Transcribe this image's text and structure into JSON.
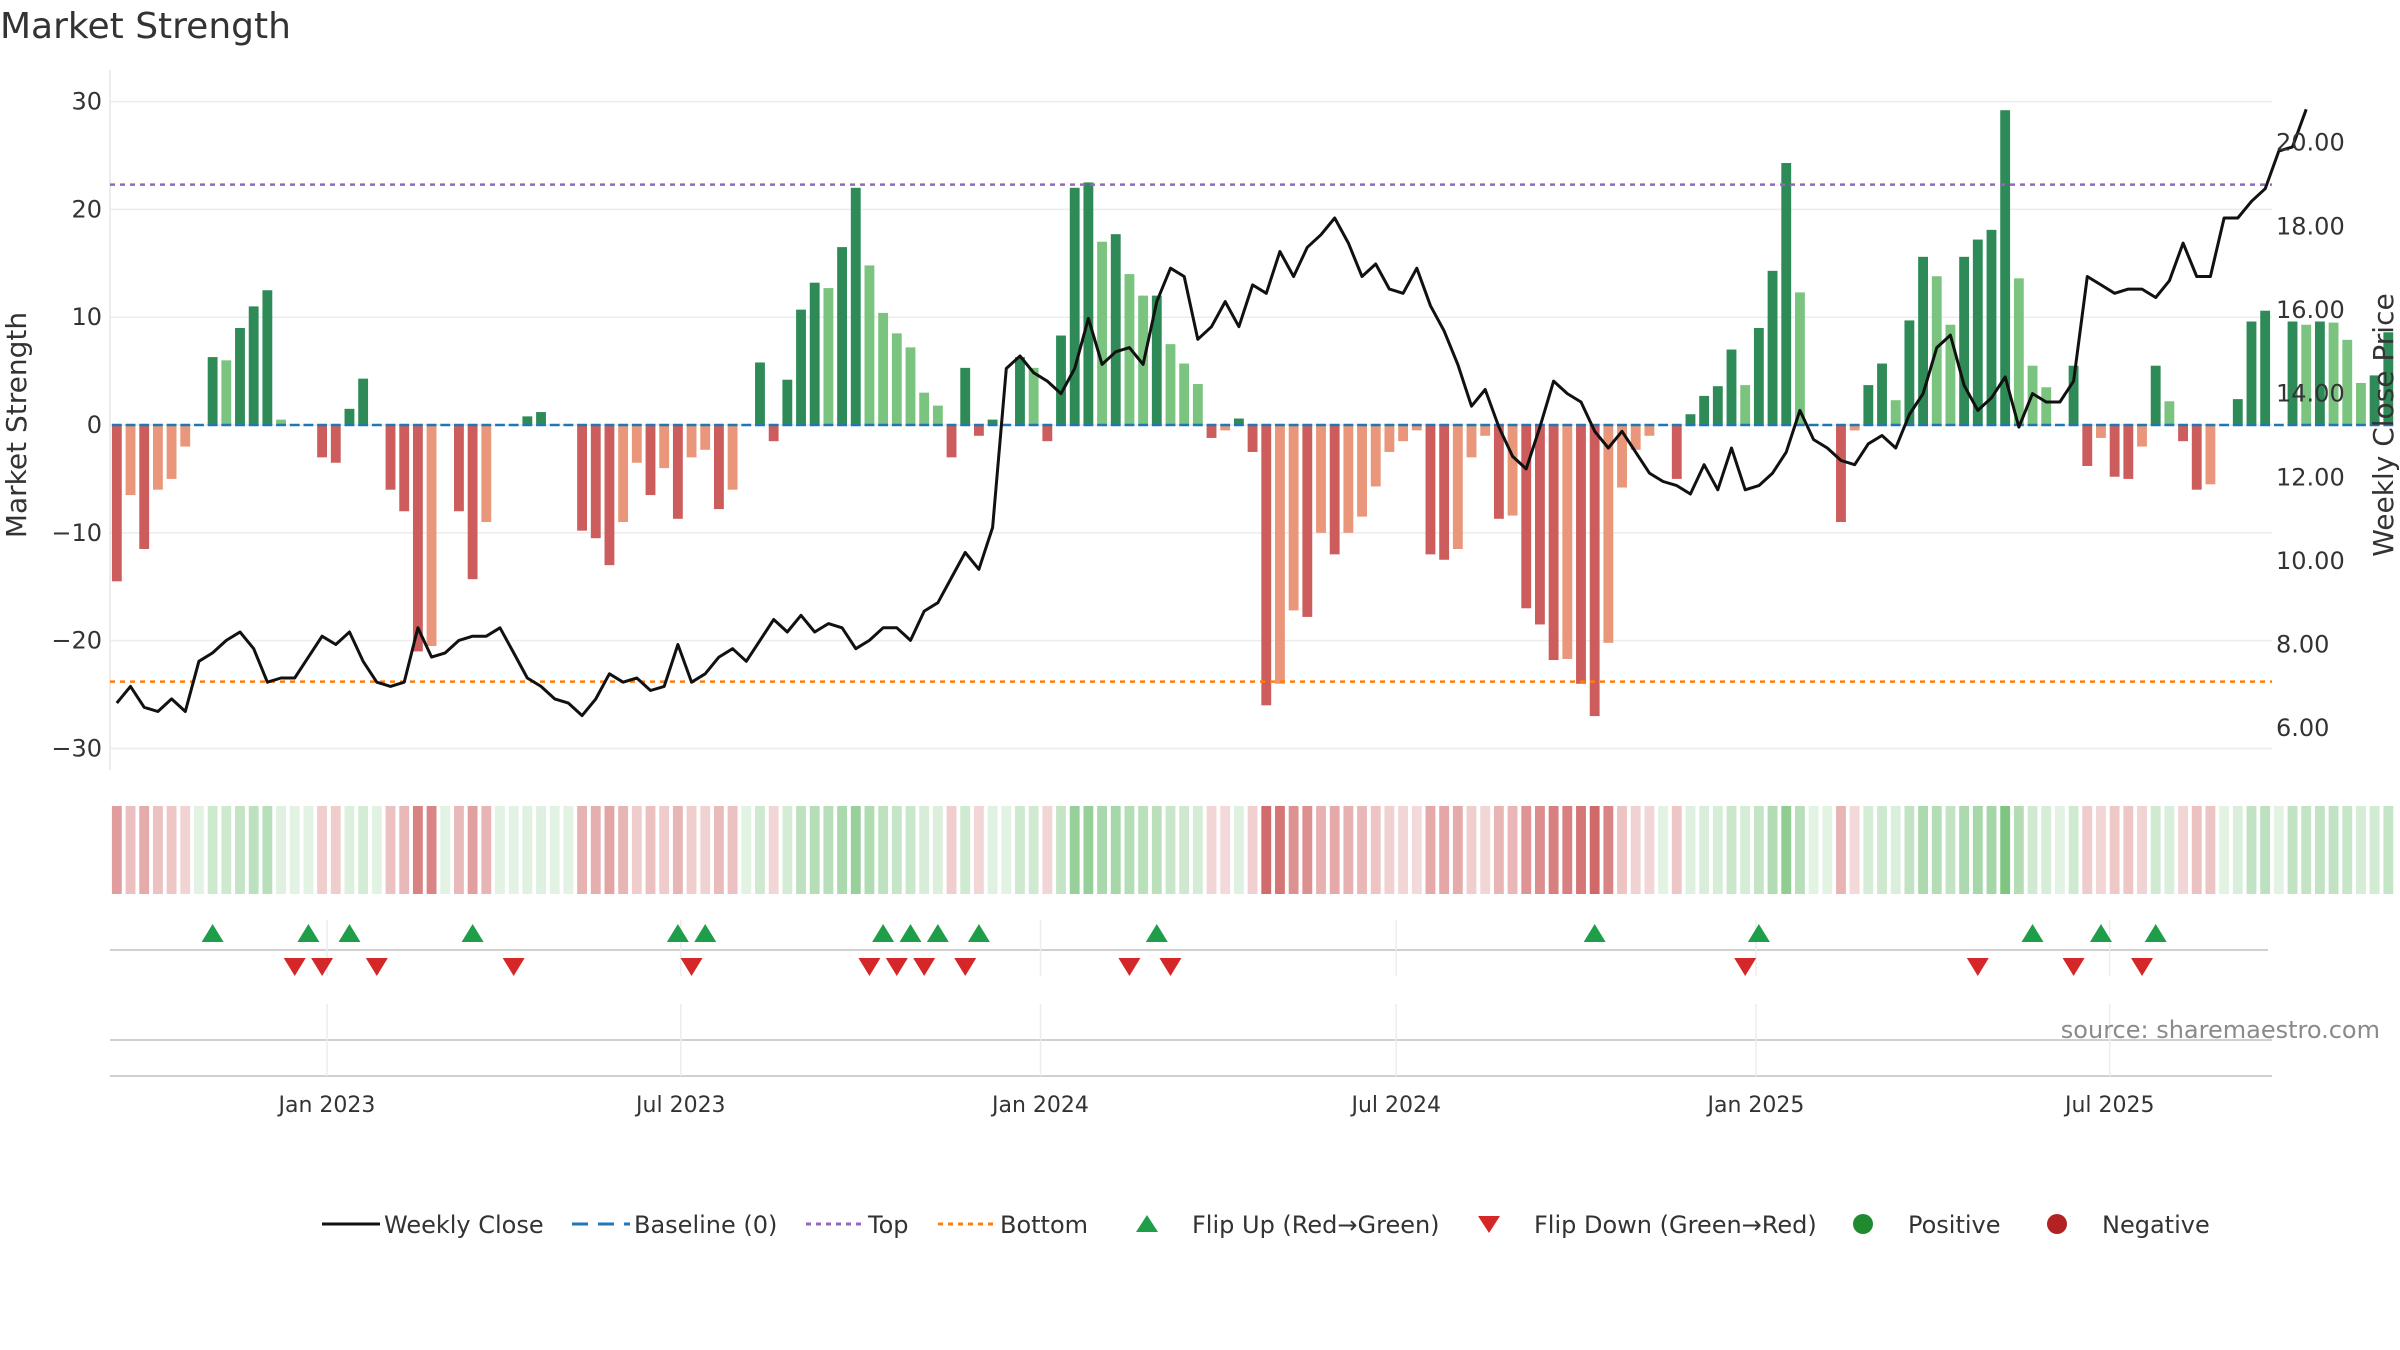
{
  "title": "Market Strength",
  "source": "source: sharemaestro.com",
  "chart_data": {
    "type": "bar",
    "title": "Market Strength",
    "ylabel_left": "Market Strength",
    "ylabel_right": "Weekly Close Price",
    "ylim_left": [
      -32,
      32
    ],
    "ylim_right": [
      5,
      21.5
    ],
    "yticks_left": [
      30,
      20,
      10,
      0,
      -10,
      -20,
      -30
    ],
    "yticks_left_labels": [
      "30",
      "20",
      "10",
      "0",
      "−10",
      "−20",
      "−30"
    ],
    "yticks_right": [
      20,
      18,
      16,
      14,
      12,
      10,
      8,
      6
    ],
    "yticks_right_labels": [
      "20.00",
      "18.00",
      "16.00",
      "14.00",
      "12.00",
      "10.00",
      "8.00",
      "6.00"
    ],
    "x_start": "2022-09-12",
    "x_end": "2025-09-22",
    "xticks": [
      {
        "date": "2023-01-01",
        "label": "Jan 2023"
      },
      {
        "date": "2023-07-01",
        "label": "Jul 2023"
      },
      {
        "date": "2024-01-01",
        "label": "Jan 2024"
      },
      {
        "date": "2024-07-01",
        "label": "Jul 2024"
      },
      {
        "date": "2025-01-01",
        "label": "Jan 2025"
      },
      {
        "date": "2025-07-01",
        "label": "Jul 2025"
      }
    ],
    "top_level": 22.3,
    "bottom_level": -23.8,
    "colors": {
      "strong_green": "#2e8b57",
      "light_green": "#7bc47f",
      "strong_red": "#cd5c5c",
      "light_red": "#e9967a",
      "close_line": "#111111",
      "baseline": "#1f77b4",
      "top": "#9467bd",
      "bottom": "#ff7f0e",
      "flip_up": "#1f9e4a",
      "flip_down": "#d62728",
      "positive": "#1f8a2e",
      "negative": "#b22222"
    },
    "strength": [
      -14.5,
      -6.5,
      -11.5,
      -6,
      -5,
      -2,
      0,
      6.3,
      6,
      9,
      11,
      12.5,
      0.5,
      0,
      0,
      -3,
      -3.5,
      1.5,
      4.3,
      0,
      -6,
      -8,
      -21,
      -20.5,
      0,
      -8,
      -14.3,
      -9,
      0,
      0,
      0.8,
      1.2,
      0,
      0,
      -9.8,
      -10.5,
      -13,
      -9,
      -3.5,
      -6.5,
      -4,
      -8.7,
      -3,
      -2.3,
      -7.8,
      -6,
      0,
      5.8,
      -1.5,
      4.2,
      10.7,
      13.2,
      12.7,
      16.5,
      22,
      14.8,
      10.4,
      8.5,
      7.2,
      3,
      1.8,
      -3,
      5.3,
      -1,
      0.5,
      0,
      6.3,
      5.3,
      -1.5,
      8.3,
      22,
      22.5,
      17,
      17.7,
      14,
      12,
      12,
      7.5,
      5.7,
      3.8,
      -1.2,
      -0.5,
      0.6,
      -2.5,
      -26,
      -24,
      -17.2,
      -17.8,
      -10,
      -12,
      -10,
      -8.5,
      -5.7,
      -2.5,
      -1.5,
      -0.5,
      -12,
      -12.5,
      -11.5,
      -3,
      -1,
      -8.7,
      -8.4,
      -17,
      -18.5,
      -21.8,
      -21.7,
      -24,
      -27,
      -20.2,
      -5.8,
      -2.3,
      -1,
      0,
      -5,
      1,
      2.7,
      3.6,
      7,
      3.7,
      9,
      14.3,
      24.3,
      12.3,
      0,
      0,
      -9,
      -0.5,
      3.7,
      5.7,
      2.3,
      9.7,
      15.6,
      13.8,
      9.3,
      15.6,
      17.2,
      18.1,
      29.2,
      13.6,
      5.5,
      3.5,
      0,
      5.5,
      -3.8,
      -1.2,
      -4.8,
      -5,
      -2,
      5.5,
      2.2,
      -1.5,
      -6,
      -5.5,
      0,
      2.4,
      9.6,
      10.6,
      0,
      9.6,
      9.3,
      9.6,
      9.5,
      7.9,
      3.9,
      4.6,
      8.6
    ],
    "close": [
      6.6,
      7,
      6.5,
      6.4,
      6.7,
      6.4,
      7.6,
      7.8,
      8.1,
      8.3,
      7.9,
      7.1,
      7.2,
      7.2,
      7.7,
      8.2,
      8,
      8.3,
      7.6,
      7.1,
      7,
      7.1,
      8.4,
      7.7,
      7.8,
      8.1,
      8.2,
      8.2,
      8.4,
      7.8,
      7.2,
      7,
      6.7,
      6.6,
      6.3,
      6.7,
      7.3,
      7.1,
      7.2,
      6.9,
      7,
      8,
      7.1,
      7.3,
      7.7,
      7.9,
      7.6,
      8.1,
      8.6,
      8.3,
      8.7,
      8.3,
      8.5,
      8.4,
      7.9,
      8.1,
      8.4,
      8.4,
      8.1,
      8.8,
      9,
      9.6,
      10.2,
      9.8,
      10.8,
      14.6,
      14.9,
      14.5,
      14.3,
      14,
      14.6,
      15.8,
      14.7,
      15,
      15.1,
      14.7,
      16.2,
      17,
      16.8,
      15.3,
      15.6,
      16.2,
      15.6,
      16.6,
      16.4,
      17.4,
      16.8,
      17.5,
      17.8,
      18.2,
      17.6,
      16.8,
      17.1,
      16.5,
      16.4,
      17,
      16.1,
      15.5,
      14.7,
      13.7,
      14.1,
      13.2,
      12.5,
      12.2,
      13.2,
      14.3,
      14,
      13.8,
      13.1,
      12.7,
      13.1,
      12.6,
      12.1,
      11.9,
      11.8,
      11.6,
      12.3,
      11.7,
      12.7,
      11.7,
      11.8,
      12.1,
      12.6,
      13.6,
      12.9,
      12.7,
      12.4,
      12.3,
      12.8,
      13,
      12.7,
      13.5,
      14,
      15.1,
      15.4,
      14.2,
      13.6,
      13.9,
      14.4,
      13.2,
      14,
      13.8,
      13.8,
      14.3,
      16.8,
      16.6,
      16.4,
      16.5,
      16.5,
      16.3,
      16.7,
      17.6,
      16.8,
      16.8,
      18.2,
      18.2,
      18.6,
      18.9,
      19.8,
      19.9,
      20.8
    ],
    "flip_up_weeks": [
      7,
      14,
      17,
      26,
      41,
      43,
      56,
      58,
      60,
      63,
      76,
      108,
      120,
      140,
      145,
      149
    ],
    "flip_down_weeks": [
      13,
      15,
      19,
      29,
      42,
      55,
      57,
      59,
      62,
      74,
      77,
      119,
      136,
      143,
      148
    ],
    "legend": [
      {
        "label": "Weekly Close",
        "kind": "line"
      },
      {
        "label": "Baseline (0)",
        "kind": "dash"
      },
      {
        "label": "Top",
        "kind": "dot-purple"
      },
      {
        "label": "Bottom",
        "kind": "dot-orange"
      },
      {
        "label": "Flip Up (Red→Green)",
        "kind": "tri-up"
      },
      {
        "label": "Flip Down (Green→Red)",
        "kind": "tri-down"
      },
      {
        "label": "Positive",
        "kind": "dot-green"
      },
      {
        "label": "Negative",
        "kind": "dot-red"
      }
    ],
    "legend_position": "bottom",
    "grid": true
  }
}
